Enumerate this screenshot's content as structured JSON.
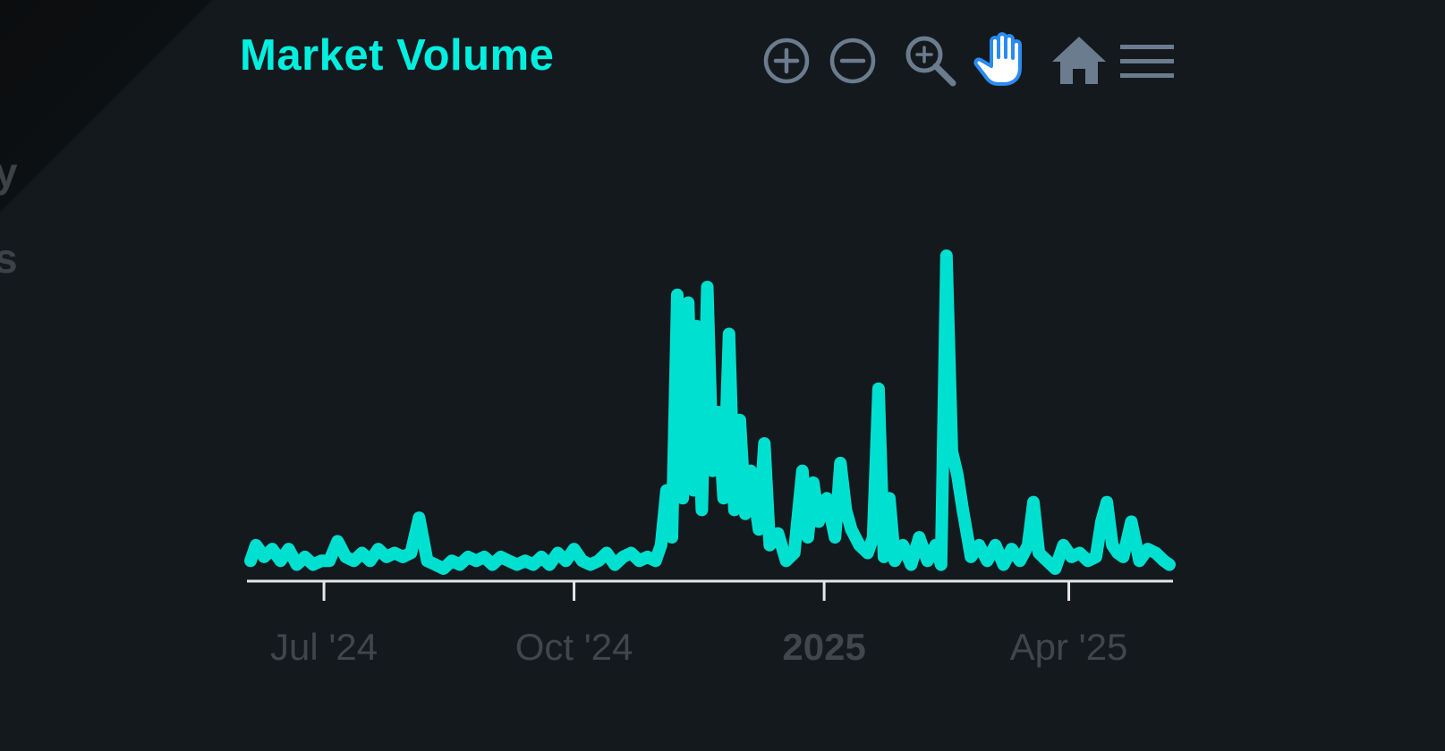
{
  "page": {
    "background": "#14191d"
  },
  "partial_text": [
    "y",
    "s"
  ],
  "toolbar": {
    "zoom_in_icon": "zoom-in-icon",
    "zoom_out_icon": "zoom-out-icon",
    "magnify_icon": "magnify-icon",
    "pan_icon": "pan-hand-icon",
    "reset_icon": "home-icon",
    "menu_icon": "menu-icon",
    "active_tool": "pan",
    "icon_color": "#6b7c8f",
    "active_color": "#2a8bf2"
  },
  "chart_data": {
    "type": "line",
    "title": "Market Volume",
    "xlabel": "",
    "ylabel": "",
    "color": "#00e0d0",
    "x_ticks": [
      {
        "label": "Jul '24",
        "date": "2024-07-01",
        "major": false
      },
      {
        "label": "Oct '24",
        "date": "2024-10-01",
        "major": false
      },
      {
        "label": "2025",
        "date": "2025-01-01",
        "major": true
      },
      {
        "label": "Apr '25",
        "date": "2025-04-01",
        "major": false
      }
    ],
    "grid": false,
    "series": [
      {
        "points": [
          [
            "2024-06-04",
            2
          ],
          [
            "2024-06-06",
            6
          ],
          [
            "2024-06-09",
            3
          ],
          [
            "2024-06-12",
            5
          ],
          [
            "2024-06-15",
            2
          ],
          [
            "2024-06-18",
            5
          ],
          [
            "2024-06-21",
            1
          ],
          [
            "2024-06-24",
            3
          ],
          [
            "2024-06-27",
            1
          ],
          [
            "2024-06-30",
            2
          ],
          [
            "2024-07-03",
            2
          ],
          [
            "2024-07-06",
            7
          ],
          [
            "2024-07-09",
            3
          ],
          [
            "2024-07-12",
            2
          ],
          [
            "2024-07-15",
            4
          ],
          [
            "2024-07-18",
            2
          ],
          [
            "2024-07-21",
            5
          ],
          [
            "2024-07-24",
            3
          ],
          [
            "2024-07-27",
            4
          ],
          [
            "2024-07-30",
            3
          ],
          [
            "2024-08-02",
            4
          ],
          [
            "2024-08-05",
            13
          ],
          [
            "2024-08-08",
            2
          ],
          [
            "2024-08-11",
            1
          ],
          [
            "2024-08-14",
            0
          ],
          [
            "2024-08-17",
            2
          ],
          [
            "2024-08-20",
            1
          ],
          [
            "2024-08-23",
            3
          ],
          [
            "2024-08-26",
            2
          ],
          [
            "2024-08-29",
            3
          ],
          [
            "2024-09-01",
            1
          ],
          [
            "2024-09-04",
            3
          ],
          [
            "2024-09-07",
            2
          ],
          [
            "2024-09-10",
            1
          ],
          [
            "2024-09-13",
            2
          ],
          [
            "2024-09-16",
            1
          ],
          [
            "2024-09-19",
            3
          ],
          [
            "2024-09-22",
            1
          ],
          [
            "2024-09-25",
            4
          ],
          [
            "2024-09-28",
            2
          ],
          [
            "2024-10-01",
            5
          ],
          [
            "2024-10-04",
            2
          ],
          [
            "2024-10-07",
            1
          ],
          [
            "2024-10-10",
            2
          ],
          [
            "2024-10-13",
            4
          ],
          [
            "2024-10-16",
            1
          ],
          [
            "2024-10-19",
            3
          ],
          [
            "2024-10-22",
            4
          ],
          [
            "2024-10-25",
            2
          ],
          [
            "2024-10-28",
            3
          ],
          [
            "2024-10-31",
            2
          ],
          [
            "2024-11-02",
            6
          ],
          [
            "2024-11-04",
            20
          ],
          [
            "2024-11-06",
            8
          ],
          [
            "2024-11-08",
            70
          ],
          [
            "2024-11-10",
            18
          ],
          [
            "2024-11-12",
            68
          ],
          [
            "2024-11-14",
            20
          ],
          [
            "2024-11-15",
            62
          ],
          [
            "2024-11-17",
            15
          ],
          [
            "2024-11-19",
            72
          ],
          [
            "2024-11-21",
            25
          ],
          [
            "2024-11-23",
            40
          ],
          [
            "2024-11-25",
            18
          ],
          [
            "2024-11-27",
            60
          ],
          [
            "2024-11-29",
            15
          ],
          [
            "2024-12-01",
            38
          ],
          [
            "2024-12-03",
            14
          ],
          [
            "2024-12-05",
            25
          ],
          [
            "2024-12-08",
            10
          ],
          [
            "2024-12-10",
            32
          ],
          [
            "2024-12-12",
            6
          ],
          [
            "2024-12-15",
            9
          ],
          [
            "2024-12-18",
            2
          ],
          [
            "2024-12-21",
            4
          ],
          [
            "2024-12-24",
            25
          ],
          [
            "2024-12-26",
            8
          ],
          [
            "2024-12-28",
            22
          ],
          [
            "2024-12-30",
            12
          ],
          [
            "2025-01-02",
            18
          ],
          [
            "2025-01-05",
            8
          ],
          [
            "2025-01-07",
            27
          ],
          [
            "2025-01-09",
            15
          ],
          [
            "2025-01-11",
            10
          ],
          [
            "2025-01-14",
            6
          ],
          [
            "2025-01-17",
            4
          ],
          [
            "2025-01-19",
            8
          ],
          [
            "2025-01-21",
            46
          ],
          [
            "2025-01-23",
            3
          ],
          [
            "2025-01-25",
            18
          ],
          [
            "2025-01-27",
            2
          ],
          [
            "2025-01-30",
            6
          ],
          [
            "2025-02-02",
            1
          ],
          [
            "2025-02-05",
            8
          ],
          [
            "2025-02-08",
            2
          ],
          [
            "2025-02-11",
            6
          ],
          [
            "2025-02-13",
            1
          ],
          [
            "2025-02-15",
            80
          ],
          [
            "2025-02-17",
            30
          ],
          [
            "2025-02-19",
            24
          ],
          [
            "2025-02-21",
            15
          ],
          [
            "2025-02-24",
            3
          ],
          [
            "2025-02-27",
            6
          ],
          [
            "2025-03-02",
            2
          ],
          [
            "2025-03-05",
            6
          ],
          [
            "2025-03-08",
            1
          ],
          [
            "2025-03-11",
            5
          ],
          [
            "2025-03-14",
            2
          ],
          [
            "2025-03-17",
            6
          ],
          [
            "2025-03-19",
            17
          ],
          [
            "2025-03-21",
            4
          ],
          [
            "2025-03-24",
            2
          ],
          [
            "2025-03-27",
            0
          ],
          [
            "2025-03-30",
            6
          ],
          [
            "2025-04-02",
            3
          ],
          [
            "2025-04-05",
            4
          ],
          [
            "2025-04-08",
            2
          ],
          [
            "2025-04-11",
            3
          ],
          [
            "2025-04-13",
            12
          ],
          [
            "2025-04-15",
            17
          ],
          [
            "2025-04-17",
            6
          ],
          [
            "2025-04-19",
            4
          ],
          [
            "2025-04-21",
            3
          ],
          [
            "2025-04-24",
            12
          ],
          [
            "2025-04-27",
            2
          ],
          [
            "2025-04-30",
            5
          ],
          [
            "2025-05-03",
            4
          ],
          [
            "2025-05-06",
            2
          ],
          [
            "2025-05-08",
            1
          ]
        ]
      }
    ]
  }
}
